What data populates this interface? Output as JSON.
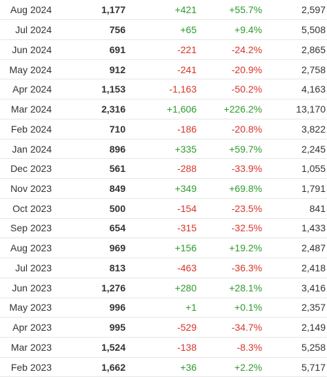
{
  "colors": {
    "positive": "#2e9a2e",
    "negative": "#d8332a",
    "text": "#333333",
    "row_border": "#e6e6e6"
  },
  "rows": [
    {
      "month": "Aug 2024",
      "avg_players": "1,177",
      "gain": "+421",
      "gain_pct": "+55.7%",
      "peak": "2,597",
      "trend": "positive"
    },
    {
      "month": "Jul 2024",
      "avg_players": "756",
      "gain": "+65",
      "gain_pct": "+9.4%",
      "peak": "5,508",
      "trend": "positive"
    },
    {
      "month": "Jun 2024",
      "avg_players": "691",
      "gain": "-221",
      "gain_pct": "-24.2%",
      "peak": "2,865",
      "trend": "negative"
    },
    {
      "month": "May 2024",
      "avg_players": "912",
      "gain": "-241",
      "gain_pct": "-20.9%",
      "peak": "2,758",
      "trend": "negative"
    },
    {
      "month": "Apr 2024",
      "avg_players": "1,153",
      "gain": "-1,163",
      "gain_pct": "-50.2%",
      "peak": "4,163",
      "trend": "negative"
    },
    {
      "month": "Mar 2024",
      "avg_players": "2,316",
      "gain": "+1,606",
      "gain_pct": "+226.2%",
      "peak": "13,170",
      "trend": "positive"
    },
    {
      "month": "Feb 2024",
      "avg_players": "710",
      "gain": "-186",
      "gain_pct": "-20.8%",
      "peak": "3,822",
      "trend": "negative"
    },
    {
      "month": "Jan 2024",
      "avg_players": "896",
      "gain": "+335",
      "gain_pct": "+59.7%",
      "peak": "2,245",
      "trend": "positive"
    },
    {
      "month": "Dec 2023",
      "avg_players": "561",
      "gain": "-288",
      "gain_pct": "-33.9%",
      "peak": "1,055",
      "trend": "negative"
    },
    {
      "month": "Nov 2023",
      "avg_players": "849",
      "gain": "+349",
      "gain_pct": "+69.8%",
      "peak": "1,791",
      "trend": "positive"
    },
    {
      "month": "Oct 2023",
      "avg_players": "500",
      "gain": "-154",
      "gain_pct": "-23.5%",
      "peak": "841",
      "trend": "negative"
    },
    {
      "month": "Sep 2023",
      "avg_players": "654",
      "gain": "-315",
      "gain_pct": "-32.5%",
      "peak": "1,433",
      "trend": "negative"
    },
    {
      "month": "Aug 2023",
      "avg_players": "969",
      "gain": "+156",
      "gain_pct": "+19.2%",
      "peak": "2,487",
      "trend": "positive"
    },
    {
      "month": "Jul 2023",
      "avg_players": "813",
      "gain": "-463",
      "gain_pct": "-36.3%",
      "peak": "2,418",
      "trend": "negative"
    },
    {
      "month": "Jun 2023",
      "avg_players": "1,276",
      "gain": "+280",
      "gain_pct": "+28.1%",
      "peak": "3,416",
      "trend": "positive"
    },
    {
      "month": "May 2023",
      "avg_players": "996",
      "gain": "+1",
      "gain_pct": "+0.1%",
      "peak": "2,357",
      "trend": "positive"
    },
    {
      "month": "Apr 2023",
      "avg_players": "995",
      "gain": "-529",
      "gain_pct": "-34.7%",
      "peak": "2,149",
      "trend": "negative"
    },
    {
      "month": "Mar 2023",
      "avg_players": "1,524",
      "gain": "-138",
      "gain_pct": "-8.3%",
      "peak": "5,258",
      "trend": "negative"
    },
    {
      "month": "Feb 2023",
      "avg_players": "1,662",
      "gain": "+36",
      "gain_pct": "+2.2%",
      "peak": "5,717",
      "trend": "positive"
    }
  ]
}
